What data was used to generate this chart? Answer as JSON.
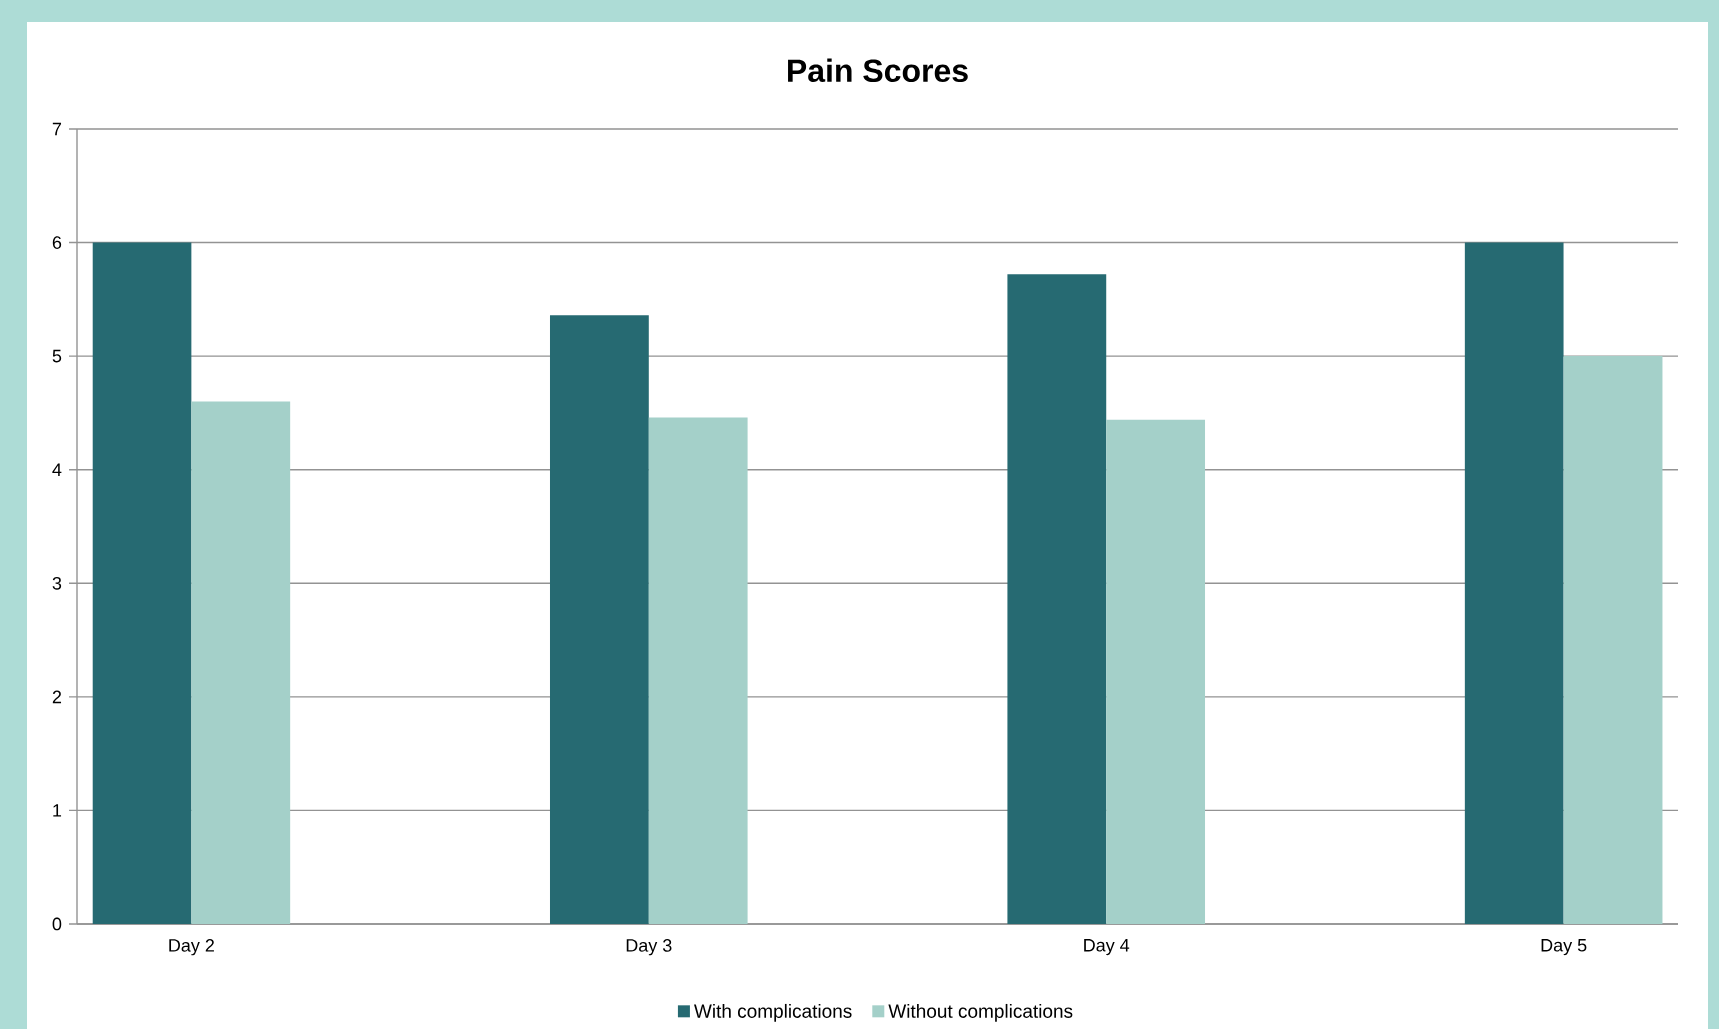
{
  "chart_data": {
    "type": "bar",
    "title": "Pain Scores",
    "categories": [
      "Day 2",
      "Day 3",
      "Day 4",
      "Day 5"
    ],
    "series": [
      {
        "name": "With complications",
        "color": "#266a72",
        "values": [
          6,
          5.36,
          5.72,
          6
        ]
      },
      {
        "name": "Without complications",
        "color": "#a4d0c9",
        "values": [
          4.6,
          4.46,
          4.44,
          5
        ]
      }
    ],
    "ylim": [
      0,
      7
    ],
    "yticks": [
      0,
      1,
      2,
      3,
      4,
      5,
      6,
      7
    ],
    "grid": "y",
    "legend": "bottom"
  }
}
